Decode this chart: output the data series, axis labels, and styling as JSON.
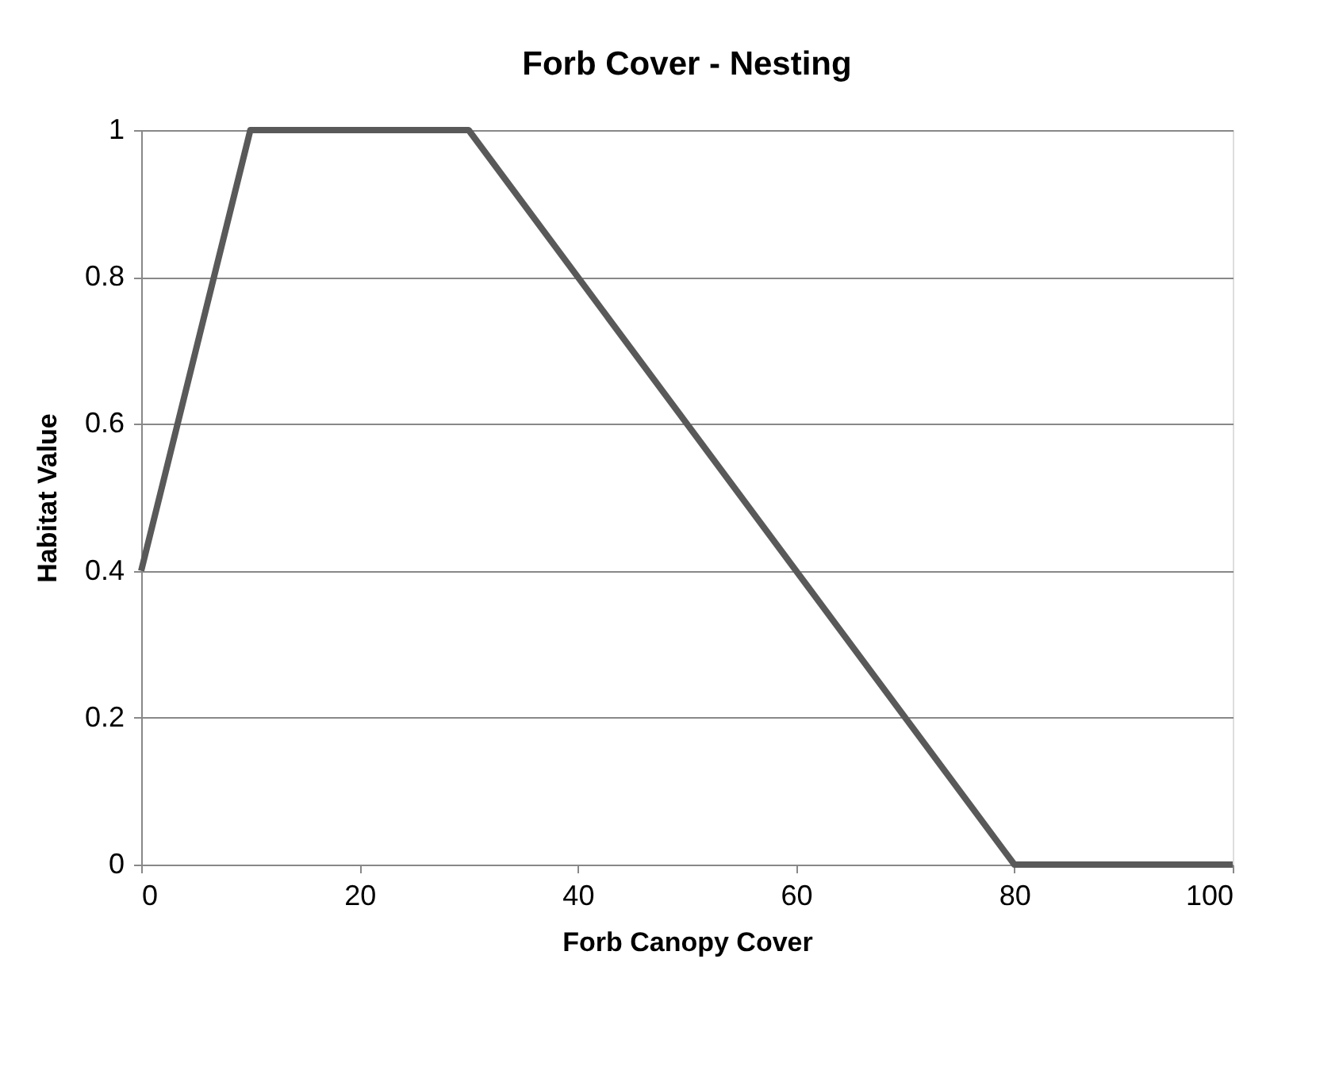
{
  "chart_data": {
    "type": "line",
    "title": "Forb Cover - Nesting",
    "xlabel": "Forb Canopy Cover",
    "ylabel": "Habitat Value",
    "x": [
      0,
      10,
      30,
      80,
      100
    ],
    "series": [
      {
        "color": "#595959",
        "values": [
          0.4,
          1,
          1,
          0,
          0
        ]
      }
    ],
    "xlim": [
      0,
      100
    ],
    "xticks": [
      0,
      20,
      40,
      60,
      80,
      100
    ],
    "ylim": [
      0,
      1
    ],
    "yticks": [
      0,
      0.2,
      0.4,
      0.6,
      0.8,
      1
    ],
    "grid": "y",
    "legend": false,
    "marker": "none",
    "line_style": "solid"
  }
}
